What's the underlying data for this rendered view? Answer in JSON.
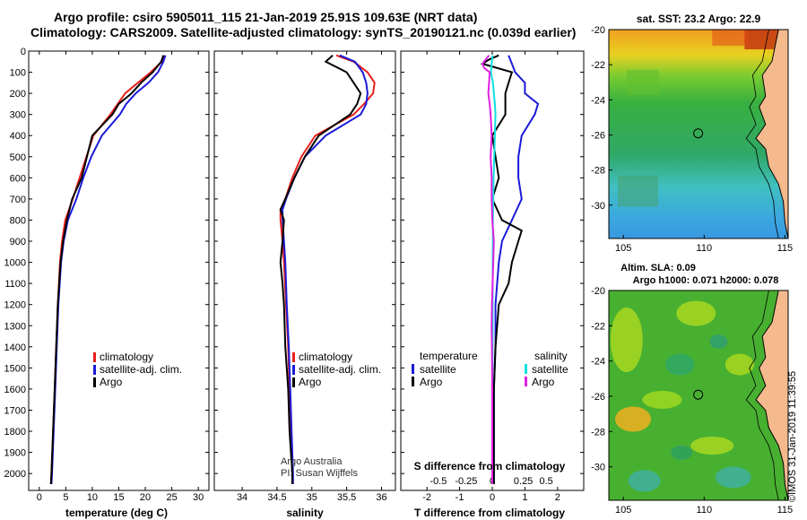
{
  "header": {
    "line1": "Argo profile: csiro 5905011_115 21-Jan-2019 25.91S 109.63E (NRT data)",
    "line2": "Climatology: CARS2009. Satellite-adjusted climatology: synTS_20190121.nc (0.039d earlier)"
  },
  "colors": {
    "climatology": "#e8201c",
    "satellite": "#1a1ad8",
    "argo": "#000000",
    "sat_salinity": "#10e0e0",
    "argo_salinity": "#e020e0",
    "land": "#f5b98e"
  },
  "depth_axis": {
    "ylim": [
      2080,
      0
    ],
    "ticks": [
      0,
      100,
      200,
      300,
      400,
      500,
      600,
      700,
      800,
      900,
      1000,
      1100,
      1200,
      1300,
      1400,
      1500,
      1600,
      1700,
      1800,
      1900,
      2000
    ]
  },
  "chart_data": [
    {
      "type": "line",
      "name": "temperature",
      "xlabel": "temperature (deg C)",
      "xlim": [
        -2,
        32
      ],
      "xticks": [
        0,
        5,
        10,
        15,
        20,
        25,
        30
      ],
      "legend": {
        "placement": "bottom-center",
        "items": [
          "climatology",
          "satellite-adj. clim.",
          "Argo"
        ]
      },
      "series": [
        {
          "name": "climatology",
          "depth": [
            20,
            50,
            100,
            150,
            200,
            250,
            300,
            400,
            500,
            600,
            700,
            800,
            900,
            1000,
            1200,
            1400,
            1600,
            1800,
            2000,
            2050
          ],
          "values": [
            23.5,
            23.1,
            21.0,
            18.6,
            16.2,
            14.8,
            13.4,
            10.2,
            8.9,
            7.6,
            6.3,
            4.9,
            4.3,
            3.9,
            3.5,
            3.2,
            2.9,
            2.6,
            2.3,
            2.2
          ]
        },
        {
          "name": "satellite-adj. clim.",
          "depth": [
            20,
            50,
            100,
            150,
            200,
            250,
            300,
            400,
            500,
            600,
            700,
            800,
            900,
            1000,
            1200,
            1400,
            1600,
            1800,
            2000,
            2050
          ],
          "values": [
            23.8,
            23.4,
            22.4,
            20.6,
            18.2,
            16.4,
            15.2,
            11.8,
            9.8,
            8.3,
            7.0,
            5.4,
            4.6,
            4.1,
            3.6,
            3.3,
            3.0,
            2.7,
            2.4,
            2.3
          ]
        },
        {
          "name": "Argo",
          "depth": [
            20,
            50,
            100,
            150,
            200,
            250,
            300,
            400,
            500,
            600,
            700,
            800,
            900,
            1000,
            1200,
            1400,
            1600,
            1800,
            2000,
            2050
          ],
          "values": [
            23.4,
            23.0,
            21.4,
            19.2,
            17.4,
            15.0,
            13.8,
            10.0,
            9.0,
            8.0,
            6.2,
            5.2,
            4.5,
            4.0,
            3.5,
            3.2,
            2.9,
            2.6,
            2.3,
            2.2
          ]
        }
      ]
    },
    {
      "type": "line",
      "name": "salinity",
      "xlabel": "salinity",
      "xlim": [
        33.6,
        36.2
      ],
      "xticks": [
        34,
        34.5,
        35,
        35.5,
        36
      ],
      "legend": {
        "placement": "bottom-center",
        "items": [
          "climatology",
          "satellite-adj. clim.",
          "Argo"
        ]
      },
      "series": [
        {
          "name": "climatology",
          "depth": [
            20,
            50,
            100,
            150,
            200,
            250,
            300,
            400,
            500,
            600,
            700,
            750,
            800,
            900,
            1000,
            1200,
            1400,
            1600,
            1800,
            2000,
            2050
          ],
          "values": [
            35.35,
            35.6,
            35.8,
            35.9,
            35.88,
            35.75,
            35.6,
            35.05,
            34.85,
            34.72,
            34.62,
            34.55,
            34.55,
            34.58,
            34.6,
            34.63,
            34.66,
            34.68,
            34.7,
            34.72,
            34.72
          ]
        },
        {
          "name": "satellite-adj. clim.",
          "depth": [
            20,
            50,
            100,
            150,
            200,
            250,
            300,
            400,
            500,
            600,
            700,
            750,
            800,
            900,
            1000,
            1200,
            1400,
            1600,
            1800,
            2000,
            2050
          ],
          "values": [
            35.4,
            35.62,
            35.73,
            35.78,
            35.8,
            35.78,
            35.7,
            35.2,
            34.9,
            34.75,
            34.63,
            34.58,
            34.58,
            34.6,
            34.62,
            34.64,
            34.67,
            34.69,
            34.71,
            34.73,
            34.73
          ]
        },
        {
          "name": "Argo",
          "depth": [
            20,
            50,
            100,
            150,
            200,
            250,
            300,
            400,
            500,
            600,
            700,
            750,
            800,
            900,
            1000,
            1100,
            1200,
            1400,
            1600,
            1800,
            2000,
            2050
          ],
          "values": [
            35.3,
            35.2,
            35.5,
            35.6,
            35.7,
            35.65,
            35.55,
            35.1,
            34.9,
            34.75,
            34.62,
            34.55,
            34.6,
            34.58,
            34.55,
            34.58,
            34.6,
            34.62,
            34.66,
            34.68,
            34.72,
            34.72
          ]
        }
      ]
    },
    {
      "type": "line",
      "name": "difference",
      "xlabel": "T difference from climatology",
      "xlabel2": "S difference from climatology",
      "xlim": [
        -2.8,
        2.8
      ],
      "xticks_t": [
        -2,
        -1,
        0,
        1,
        2
      ],
      "xticks_s_labels": [
        "-0.5",
        "-0.25",
        "0",
        "0.25",
        "0.5"
      ],
      "legend": {
        "placement": "bottom",
        "temperature_title": "temperature",
        "salinity_title": "salinity",
        "items": [
          "satellite",
          "Argo",
          "satellite",
          "Argo"
        ]
      },
      "series": [
        {
          "name": "T satellite",
          "depth": [
            20,
            60,
            100,
            150,
            200,
            250,
            300,
            400,
            500,
            600,
            700,
            800,
            900,
            1000,
            1200,
            1400,
            1600,
            1800,
            2000,
            2050
          ],
          "values": [
            0.5,
            0.6,
            0.7,
            1.0,
            1.0,
            1.4,
            1.3,
            0.9,
            0.8,
            0.8,
            0.9,
            0.6,
            0.3,
            0.2,
            0.1,
            0.1,
            0.05,
            0.05,
            0.05,
            0.05
          ]
        },
        {
          "name": "T Argo",
          "depth": [
            20,
            40,
            60,
            100,
            150,
            200,
            300,
            400,
            500,
            600,
            700,
            800,
            850,
            900,
            1000,
            1100,
            1200,
            1400,
            1600,
            1800,
            2000,
            2050
          ],
          "values": [
            0.2,
            -0.1,
            -0.3,
            0.6,
            0.5,
            0.4,
            0.4,
            0.0,
            0.1,
            0.2,
            0.0,
            0.3,
            0.9,
            0.8,
            0.6,
            0.5,
            0.2,
            0.1,
            0.05,
            0.05,
            0.05,
            0.05
          ]
        },
        {
          "name": "S satellite",
          "depth": [
            20,
            60,
            100,
            150,
            200,
            250,
            300,
            400,
            500,
            600,
            700,
            800,
            900,
            1000,
            1200,
            1400,
            1600,
            1800,
            2000,
            2050
          ],
          "values": [
            0.01,
            -0.02,
            -0.04,
            0.02,
            0.05,
            0.08,
            0.1,
            0.08,
            0.06,
            0.04,
            0.03,
            0.02,
            0.02,
            0.015,
            0.01,
            0.01,
            0.0,
            0.0,
            0.0,
            0.0
          ]
        },
        {
          "name": "S Argo",
          "depth": [
            20,
            40,
            60,
            80,
            100,
            150,
            200,
            250,
            300,
            400,
            500,
            600,
            700,
            800,
            900,
            1000,
            1200,
            1300,
            1400,
            1600,
            1800,
            2000,
            2050
          ],
          "values": [
            -0.1,
            -0.2,
            -0.3,
            -0.25,
            -0.08,
            -0.1,
            -0.12,
            -0.08,
            -0.05,
            -0.02,
            -0.05,
            -0.02,
            -0.02,
            0.0,
            0.05,
            0.03,
            -0.01,
            -0.02,
            -0.01,
            0.0,
            0.0,
            0.0,
            0.0
          ]
        }
      ]
    }
  ],
  "sst_map": {
    "title": "sat. SST: 23.2 Argo: 22.9",
    "xticks": [
      "105",
      "110",
      "115"
    ],
    "yticks": [
      "-20",
      "-22",
      "-24",
      "-26",
      "-28",
      "-30"
    ],
    "marker": {
      "lon": 109.63,
      "lat": -25.91
    }
  },
  "sla_map": {
    "title1": "Altim. SLA: 0.09",
    "title2": "Argo h1000: 0.071 h2000: 0.078",
    "xticks": [
      "105",
      "110",
      "115"
    ],
    "yticks": [
      "-20",
      "-22",
      "-24",
      "-26",
      "-28",
      "-30"
    ],
    "marker": {
      "lon": 109.63,
      "lat": -25.91
    }
  },
  "credits": {
    "line1": "Argo Australia",
    "line2": "PI: Susan Wijffels"
  },
  "stamp": "©IMOS 31-Jan-2019 11:39:55"
}
